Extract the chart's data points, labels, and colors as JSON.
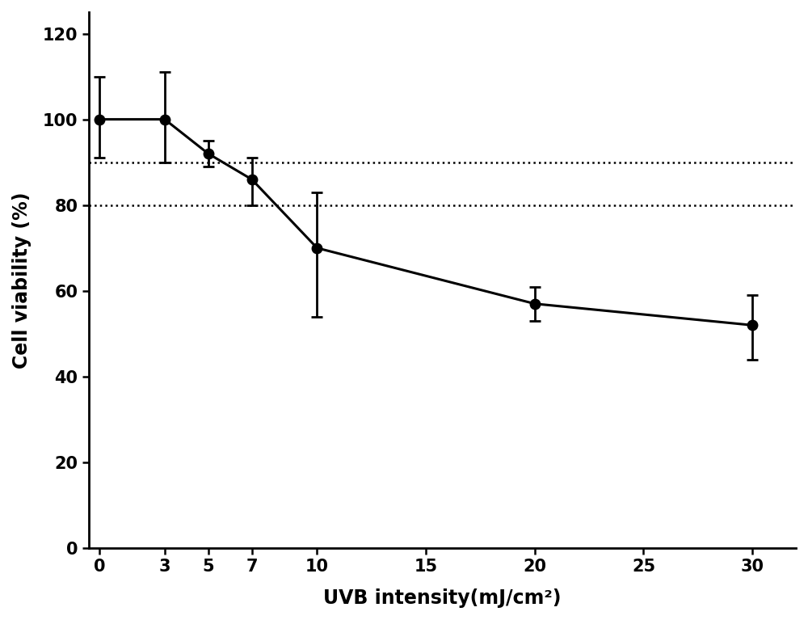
{
  "x": [
    0,
    3,
    5,
    7,
    10,
    20,
    30
  ],
  "y": [
    100,
    100,
    92,
    86,
    70,
    57,
    52
  ],
  "yerr_upper": [
    10,
    11,
    3,
    5,
    13,
    4,
    7
  ],
  "yerr_lower": [
    9,
    10,
    3,
    6,
    16,
    4,
    8
  ],
  "hline_values": [
    90,
    80
  ],
  "hline_style": "dotted",
  "xlabel": "UVB intensity(mJ/cm²)",
  "ylabel": "Cell viability (%)",
  "xlim": [
    -0.5,
    32
  ],
  "ylim": [
    0,
    125
  ],
  "xticks": [
    0,
    3,
    5,
    7,
    10,
    15,
    20,
    25,
    30
  ],
  "yticks": [
    0,
    20,
    40,
    60,
    80,
    100,
    120
  ],
  "line_color": "black",
  "marker_color": "black",
  "marker_size": 9,
  "linewidth": 2.2,
  "capsize": 5,
  "background_color": "white",
  "xlabel_fontsize": 17,
  "ylabel_fontsize": 17,
  "tick_fontsize": 15,
  "xlabel_fontweight": "bold",
  "ylabel_fontweight": "bold"
}
